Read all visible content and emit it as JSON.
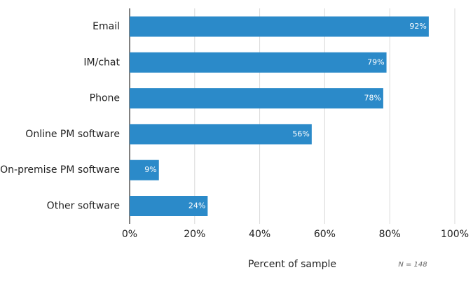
{
  "chart_data": {
    "type": "bar",
    "orientation": "horizontal",
    "categories": [
      "Email",
      "IM/chat",
      "Phone",
      "Online PM software",
      "On-premise PM software",
      "Other software"
    ],
    "values": [
      92,
      79,
      78,
      56,
      9,
      24
    ],
    "value_labels": [
      "92%",
      "79%",
      "78%",
      "56%",
      "9%",
      "24%"
    ],
    "color": "#2b8ac9",
    "xlim": [
      0,
      100
    ],
    "xticks": [
      {
        "value": 0,
        "label": "0%"
      },
      {
        "value": 20,
        "label": "20%"
      },
      {
        "value": 40,
        "label": "40%"
      },
      {
        "value": 60,
        "label": "60%"
      },
      {
        "value": 80,
        "label": "80%"
      },
      {
        "value": 100,
        "label": "100%"
      }
    ],
    "xlabel": "Percent of sample",
    "annotation": "N = 148",
    "grid": true
  }
}
